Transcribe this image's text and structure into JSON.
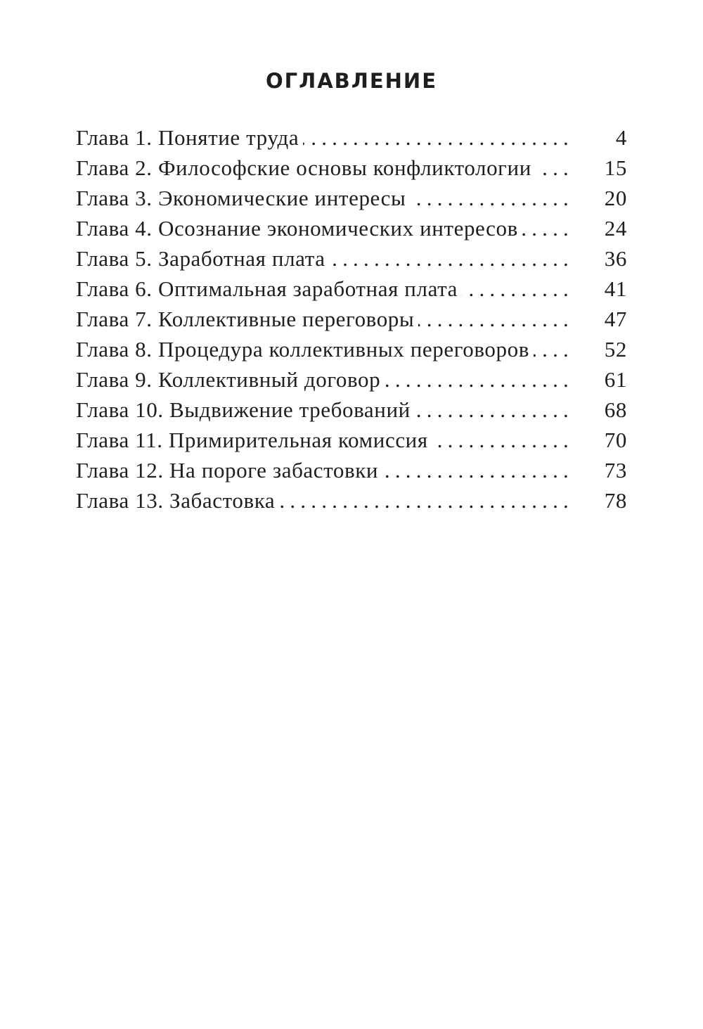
{
  "heading": "ОГЛАВЛЕНИЕ",
  "entries": [
    {
      "label": "Глава 1. Понятие труда",
      "page": "4"
    },
    {
      "label": "Глава 2. Философские основы конфликтологии",
      "page": "15"
    },
    {
      "label": "Глава 3. Экономические интересы",
      "page": "20"
    },
    {
      "label": "Глава 4. Осознание экономических интересов",
      "page": "24"
    },
    {
      "label": "Глава 5. Заработная плата",
      "page": "36"
    },
    {
      "label": "Глава 6. Оптимальная заработная плата",
      "page": "41"
    },
    {
      "label": "Глава 7. Коллективные переговоры",
      "page": "47"
    },
    {
      "label": "Глава 8. Процедура коллективных переговоров",
      "page": "52"
    },
    {
      "label": "Глава 9. Коллективный договор",
      "page": "61"
    },
    {
      "label": "Глава 10. Выдвижение требований",
      "page": "68"
    },
    {
      "label": "Глава 11. Примирительная комиссия",
      "page": "70"
    },
    {
      "label": "Глава 12. На пороге забастовки",
      "page": "73"
    },
    {
      "label": "Глава 13. Забастовка",
      "page": "78"
    }
  ]
}
